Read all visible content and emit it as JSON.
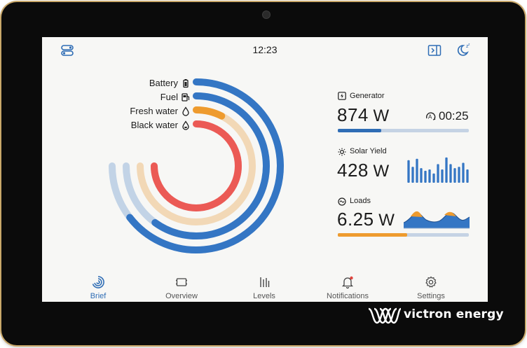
{
  "status_bar": {
    "time": "12:23"
  },
  "tank_gauges": [
    {
      "label": "Battery",
      "icon": "battery-icon",
      "level": 0.86,
      "color": "#3476c4",
      "track_color": "#c2d3e6"
    },
    {
      "label": "Fuel",
      "icon": "fuel-pump-icon",
      "level": 0.8,
      "color": "#3476c4",
      "track_color": "#c2d3e6"
    },
    {
      "label": "Fresh water",
      "icon": "water-drop-icon",
      "level": 0.1,
      "color": "#ee9b2e",
      "track_color": "#f2d8b6"
    },
    {
      "label": "Black water",
      "icon": "water-drop-icon",
      "level": 1.0,
      "color": "#eb5a55",
      "track_color": "#f5b8b5"
    }
  ],
  "generator": {
    "title": "Generator",
    "value": "874",
    "unit": "W",
    "runtime": "00:25",
    "bar_level": 0.33,
    "bar_color": "#2f6db5"
  },
  "solar_yield": {
    "title": "Solar Yield",
    "value": "428",
    "unit": "W",
    "history": [
      0.85,
      0.6,
      0.9,
      0.55,
      0.45,
      0.5,
      0.35,
      0.7,
      0.5,
      0.95,
      0.7,
      0.55,
      0.6,
      0.75,
      0.5
    ]
  },
  "loads": {
    "title": "Loads",
    "value": "6.25",
    "unit": "W",
    "bar_level": 0.53,
    "bar_color": "#ee9b2e"
  },
  "nav": {
    "items": [
      {
        "label": "Brief",
        "icon": "brief-gauge-icon",
        "active": true
      },
      {
        "label": "Overview",
        "icon": "overview-icon",
        "active": false
      },
      {
        "label": "Levels",
        "icon": "levels-icon",
        "active": false
      },
      {
        "label": "Notifications",
        "icon": "bell-icon",
        "active": false
      },
      {
        "label": "Settings",
        "icon": "gear-icon",
        "active": false
      }
    ]
  },
  "brand": {
    "name": "victron energy"
  },
  "colors": {
    "accent": "#2f6db5",
    "orange": "#ee9b2e",
    "red": "#eb5a55"
  }
}
